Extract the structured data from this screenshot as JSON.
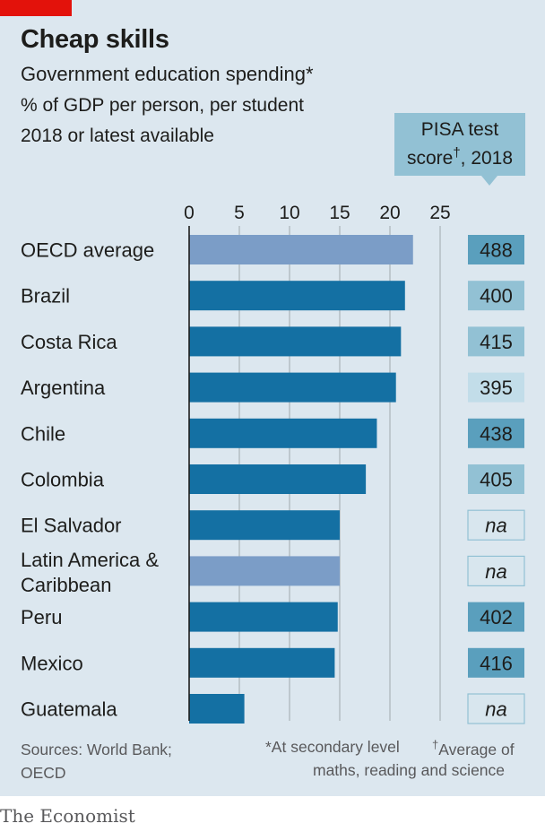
{
  "header": {
    "title": "Cheap skills",
    "subtitle": "Government education spending*",
    "unit": "% of GDP per person, per student",
    "period": "2018 or latest available"
  },
  "pisa_header": {
    "line1": "PISA test",
    "line2_main": "score",
    "line2_sup": "†",
    "line2_year": ", 2018"
  },
  "footer": {
    "sources_l1": "Sources: World Bank;",
    "sources_l2": "OECD",
    "note1": "*At secondary level",
    "note2_sup": "†",
    "note2_a": "Average of",
    "note2_b": "maths, reading and science"
  },
  "brand": "The Economist",
  "colors": {
    "panel": "#dce7ef",
    "bar": "#1470a3",
    "bar_avg": "#7b9dc7",
    "pisa_dark": "#5a9fbd",
    "pisa_mid": "#92c1d4",
    "pisa_light": "#c2dde9",
    "na_fill": "#d8e6ee",
    "na_stroke": "#92c1d4",
    "accent_red": "#e3120b"
  },
  "chart_data": {
    "type": "bar",
    "orientation": "horizontal",
    "xlim": [
      0,
      25
    ],
    "xticks": [
      "0",
      "5",
      "10",
      "15",
      "20",
      "25"
    ],
    "grid": true,
    "categories": [
      "OECD average",
      "Brazil",
      "Costa Rica",
      "Argentina",
      "Chile",
      "Colombia",
      "El Salvador",
      "Latin America & Caribbean",
      "Peru",
      "Mexico",
      "Guatemala"
    ],
    "category_lines": [
      [
        "OECD average"
      ],
      [
        "Brazil"
      ],
      [
        "Costa Rica"
      ],
      [
        "Argentina"
      ],
      [
        "Chile"
      ],
      [
        "Colombia"
      ],
      [
        "El Salvador"
      ],
      [
        "Latin America &",
        "Caribbean"
      ],
      [
        "Peru"
      ],
      [
        "Mexico"
      ],
      [
        "Guatemala"
      ]
    ],
    "highlight": [
      true,
      false,
      false,
      false,
      false,
      false,
      false,
      true,
      false,
      false,
      false
    ],
    "values": [
      22.3,
      21.5,
      21.1,
      20.6,
      18.7,
      17.6,
      15.0,
      15.0,
      14.8,
      14.5,
      5.5
    ],
    "pisa": [
      "488",
      "400",
      "415",
      "395",
      "438",
      "405",
      "na",
      "na",
      "402",
      "416",
      "na"
    ],
    "pisa_shade": [
      "dark",
      "mid",
      "mid",
      "light",
      "dark",
      "mid",
      "na",
      "na",
      "dark",
      "dark",
      "na"
    ]
  }
}
